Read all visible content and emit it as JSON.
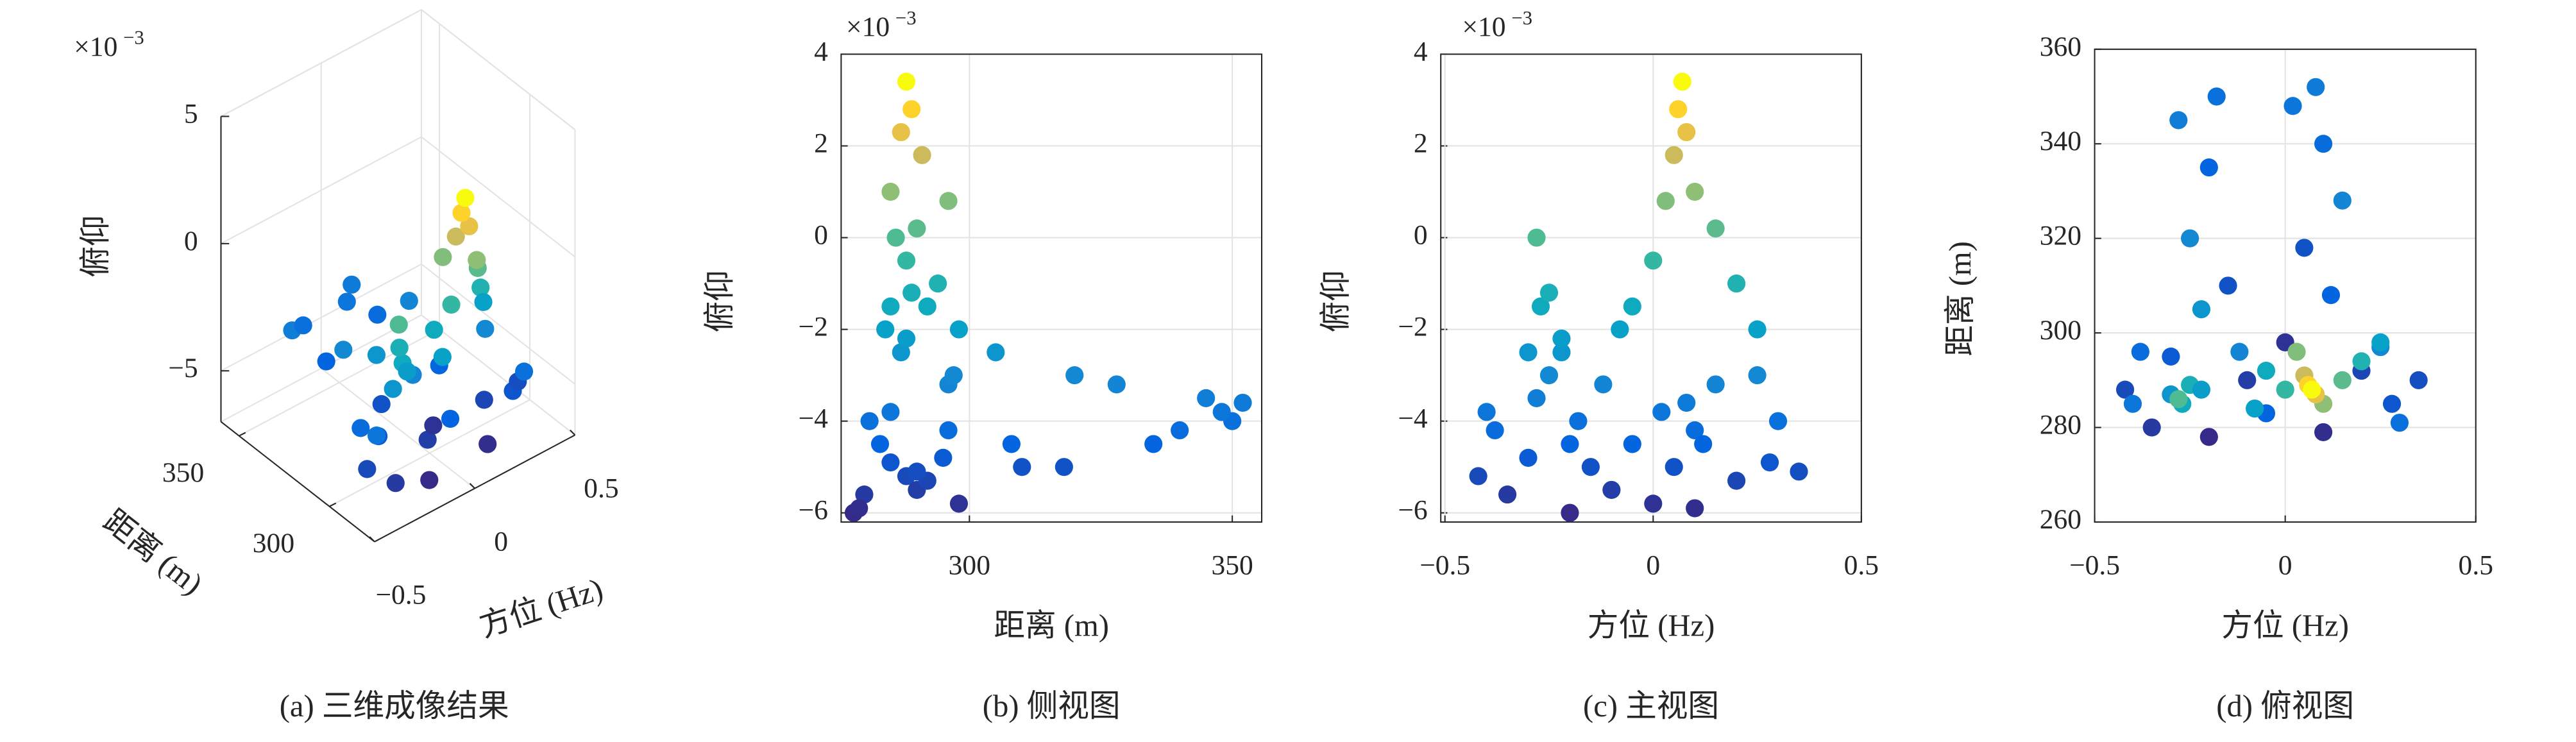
{
  "chart_data": [
    {
      "type": "scatter3d",
      "caption": "(a) 三维成像结果",
      "xlabel": "方位 (Hz)",
      "ylabel": "距离 (m)",
      "zlabel": "俯仰",
      "multiplier": "×10",
      "multiplier_exponent": "−3",
      "colormap": "parula",
      "xlim": [
        -0.5,
        0.5
      ],
      "ylim": [
        275,
        360
      ],
      "zlim": [
        -7,
        5
      ],
      "xticks": [
        {
          "value": -0.5,
          "label": "−0.5"
        },
        0,
        0.5
      ],
      "yticks": [
        300,
        350
      ],
      "zticks": [
        {
          "value": -5,
          "label": "−5"
        },
        0,
        5
      ],
      "grid": true,
      "x": [
        -0.28,
        -0.2,
        -0.25,
        -0.15,
        -0.22,
        -0.18,
        0.02,
        0.1,
        0.15,
        0.05,
        0.12,
        0.08,
        -0.42,
        -0.35,
        -0.3,
        -0.2,
        -0.1,
        -0.05,
        0,
        0.1,
        0.2,
        0.28,
        0.35,
        -0.38,
        0.3,
        -0.12,
        0.25,
        -0.4,
        -0.3,
        -0.27,
        -0.25,
        -0.28,
        -0.22,
        -0.05,
        0,
        0.2,
        0.15,
        0.03,
        0.1,
        0.05,
        0.08,
        0.06,
        0.07,
        0.25,
        -0.08
      ],
      "y": [
        345,
        335,
        320,
        310,
        305,
        350,
        348,
        340,
        328,
        318,
        308,
        352,
        288,
        280,
        295,
        278,
        290,
        283,
        298,
        279,
        292,
        285,
        290,
        296,
        281,
        296,
        297,
        285,
        287,
        285,
        289,
        286,
        288,
        292,
        288,
        294,
        290,
        296,
        285,
        291,
        287,
        289,
        288,
        298,
        284
      ],
      "z": [
        -3.5,
        -4.5,
        -3,
        -5,
        -2.5,
        -4,
        -3.8,
        -4.2,
        -3.2,
        -5,
        -4.5,
        -3.6,
        -5.2,
        -5.6,
        -4.8,
        -6,
        -5.5,
        -4.5,
        -5.8,
        -5.9,
        -5.3,
        -4.9,
        -5.1,
        -4.2,
        -4,
        -3.2,
        -3,
        -3.8,
        -2.5,
        -1.5,
        -1.2,
        0,
        -2.2,
        -1.5,
        -0.5,
        -1,
        0.2,
        0.8,
        1,
        1.8,
        2.3,
        2.8,
        3.4,
        -2,
        -2
      ]
    },
    {
      "type": "scatter",
      "caption": "(b) 侧视图",
      "xlabel": "距离 (m)",
      "ylabel": "俯仰",
      "multiplier": "×10",
      "multiplier_exponent": "−3",
      "colormap": "parula",
      "xlim": [
        275.6,
        355.6
      ],
      "ylim": [
        -6.2,
        4
      ],
      "xticks": [
        300,
        350
      ],
      "yticks": [
        {
          "value": -6,
          "label": "−6"
        },
        {
          "value": -4,
          "label": "−4"
        },
        {
          "value": -2,
          "label": "−2"
        },
        0,
        2,
        4
      ],
      "grid": true,
      "x": [
        345,
        335,
        320,
        310,
        305,
        350,
        348,
        340,
        328,
        318,
        308,
        352,
        288,
        280,
        295,
        278,
        290,
        283,
        298,
        279,
        292,
        285,
        290,
        296,
        281,
        296,
        297,
        285,
        287,
        285,
        289,
        286,
        288,
        292,
        288,
        294,
        290,
        296,
        285,
        291,
        287,
        289,
        288,
        298,
        284
      ],
      "values": [
        -3.5,
        -4.5,
        -3,
        -5,
        -2.5,
        -4,
        -3.8,
        -4.2,
        -3.2,
        -5,
        -4.5,
        -3.6,
        -5.2,
        -5.6,
        -4.8,
        -6,
        -5.5,
        -4.5,
        -5.8,
        -5.9,
        -5.3,
        -4.9,
        -5.1,
        -4.2,
        -4,
        -3.2,
        -3,
        -3.8,
        -2.5,
        -1.5,
        -1.2,
        0,
        -2.2,
        -1.5,
        -0.5,
        -1,
        0.2,
        0.8,
        1,
        1.8,
        2.3,
        2.8,
        3.4,
        -2,
        -2
      ]
    },
    {
      "type": "scatter",
      "caption": "(c) 主视图",
      "xlabel": "方位 (Hz)",
      "ylabel": "俯仰",
      "multiplier": "×10",
      "multiplier_exponent": "−3",
      "colormap": "parula",
      "xlim": [
        -0.51,
        0.5
      ],
      "ylim": [
        -6.2,
        4
      ],
      "xticks": [
        {
          "value": -0.5,
          "label": "−0.5"
        },
        0,
        0.5
      ],
      "yticks": [
        {
          "value": -6,
          "label": "−6"
        },
        {
          "value": -4,
          "label": "−4"
        },
        {
          "value": -2,
          "label": "−2"
        },
        0,
        2,
        4
      ],
      "grid": true,
      "x": [
        -0.28,
        -0.2,
        -0.25,
        -0.15,
        -0.22,
        -0.18,
        0.02,
        0.1,
        0.15,
        0.05,
        0.12,
        0.08,
        -0.42,
        -0.35,
        -0.3,
        -0.2,
        -0.1,
        -0.05,
        0,
        0.1,
        0.2,
        0.28,
        0.35,
        -0.38,
        0.3,
        -0.12,
        0.25,
        -0.4,
        -0.3,
        -0.27,
        -0.25,
        -0.28,
        -0.22,
        -0.05,
        0,
        0.2,
        0.15,
        0.03,
        0.1,
        0.05,
        0.08,
        0.06,
        0.07,
        0.25,
        -0.08
      ],
      "values": [
        -3.5,
        -4.5,
        -3,
        -5,
        -2.5,
        -4,
        -3.8,
        -4.2,
        -3.2,
        -5,
        -4.5,
        -3.6,
        -5.2,
        -5.6,
        -4.8,
        -6,
        -5.5,
        -4.5,
        -5.8,
        -5.9,
        -5.3,
        -4.9,
        -5.1,
        -4.2,
        -4,
        -3.2,
        -3,
        -3.8,
        -2.5,
        -1.5,
        -1.2,
        0,
        -2.2,
        -1.5,
        -0.5,
        -1,
        0.2,
        0.8,
        1,
        1.8,
        2.3,
        2.8,
        3.4,
        -2,
        -2
      ]
    },
    {
      "type": "scatter",
      "caption": "(d) 俯视图",
      "xlabel": "方位 (Hz)",
      "ylabel": "距离 (m)",
      "colormap": "parula",
      "xlim": [
        -0.5,
        0.5
      ],
      "ylim": [
        260,
        360
      ],
      "xticks": [
        {
          "value": -0.5,
          "label": "−0.5"
        },
        0,
        0.5
      ],
      "yticks": [
        260,
        280,
        300,
        320,
        340,
        360
      ],
      "grid": true,
      "x": [
        -0.28,
        -0.2,
        -0.25,
        -0.15,
        -0.22,
        -0.18,
        0.02,
        0.1,
        0.15,
        0.05,
        0.12,
        0.08,
        -0.42,
        -0.35,
        -0.3,
        -0.2,
        -0.1,
        -0.05,
        0,
        0.1,
        0.2,
        0.28,
        0.35,
        -0.38,
        0.3,
        -0.12,
        0.25,
        -0.4,
        -0.3,
        -0.27,
        -0.25,
        -0.28,
        -0.22,
        -0.05,
        0,
        0.2,
        0.15,
        0.03,
        0.1,
        0.05,
        0.08,
        0.06,
        0.07,
        0.25,
        -0.08
      ],
      "values": [
        345,
        335,
        320,
        310,
        305,
        350,
        348,
        340,
        328,
        318,
        308,
        352,
        288,
        280,
        295,
        278,
        290,
        283,
        298,
        279,
        292,
        285,
        290,
        296,
        281,
        296,
        297,
        285,
        287,
        285,
        289,
        286,
        288,
        292,
        288,
        294,
        290,
        296,
        285,
        291,
        287,
        289,
        288,
        298,
        284
      ],
      "c": [
        -3.5,
        -4.5,
        -3,
        -5,
        -2.5,
        -4,
        -3.8,
        -4.2,
        -3.2,
        -5,
        -4.5,
        -3.6,
        -5.2,
        -5.6,
        -4.8,
        -6,
        -5.5,
        -4.5,
        -5.8,
        -5.9,
        -5.3,
        -4.9,
        -5.1,
        -4.2,
        -4,
        -3.2,
        -3,
        -3.8,
        -2.5,
        -1.5,
        -1.2,
        0,
        -2.2,
        -1.5,
        -0.5,
        -1,
        0.2,
        0.8,
        1,
        1.8,
        2.3,
        2.8,
        3.4,
        -2,
        -2
      ]
    }
  ]
}
